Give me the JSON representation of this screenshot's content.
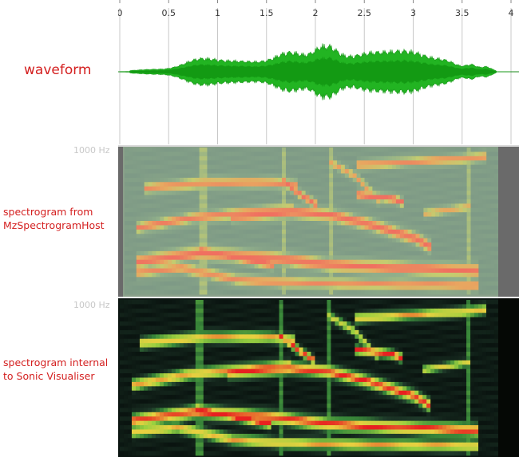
{
  "labels": {
    "waveform": "waveform",
    "spectrogram_host_line1": "spectrogram from",
    "spectrogram_host_line2": "MzSpectrogramHost",
    "spectrogram_internal_line1": "spectrogram internal",
    "spectrogram_internal_line2": "to Sonic Visualiser"
  },
  "frequency_label": "1000 Hz",
  "time_ruler": {
    "ticks": [
      "0",
      "0.5",
      "1",
      "1.5",
      "2",
      "2.5",
      "3",
      "3.5",
      "4"
    ]
  },
  "colors": {
    "label_red": "#d42020",
    "waveform_green": "#22b422",
    "spectrogram_host_bg": "#7a9a7a",
    "spectrogram_internal_bg": "#0a1410",
    "gridline": "#c8c8c8"
  }
}
